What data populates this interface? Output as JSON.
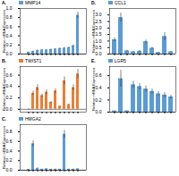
{
  "chart_data": [
    {
      "type": "bar",
      "annotation": "A.",
      "categories": [
        null,
        null,
        null,
        null,
        null,
        null,
        null,
        null,
        null,
        null,
        null,
        null
      ],
      "series": [
        {
          "name": "MMP14",
          "color": "#5b9bd5",
          "values": [
            0.04,
            0.06,
            0.08,
            0.09,
            0.09,
            0.1,
            0.11,
            0.12,
            0.13,
            0.14,
            0.18,
            0.85
          ],
          "errors": [
            0.005,
            0.008,
            0.01,
            0.01,
            0.01,
            0.01,
            0.01,
            0.015,
            0.015,
            0.015,
            0.02,
            0.07
          ]
        }
      ],
      "ylabel": "Relative mRNA Expression",
      "ylim": [
        0,
        1.0
      ],
      "yticks": [
        {
          "value": 0.0,
          "label": "0.0"
        },
        0.2,
        0.4,
        0.6,
        0.8,
        {
          "value": 1.0,
          "label": "1.0"
        }
      ],
      "legend": "upper left",
      "grid": false,
      "tick_labels": "y"
    },
    {
      "type": "bar",
      "annotation": "D.",
      "categories": [
        null,
        null,
        null,
        null,
        null,
        null,
        null,
        null,
        null,
        null
      ],
      "series": [
        {
          "name": "CCL1",
          "color": "#5b9bd5",
          "values": [
            1.1,
            2.8,
            0.25,
            0.18,
            0.22,
            0.95,
            0.45,
            0.12,
            1.35,
            0.18
          ],
          "errors": [
            0.14,
            0.35,
            0.04,
            0.03,
            0.04,
            0.13,
            0.07,
            0.02,
            0.3,
            0.03
          ]
        }
      ],
      "ylabel": "Relative mRNA Expression",
      "ylim": [
        0,
        3.5
      ],
      "yticks": [
        {
          "value": 0.0,
          "label": "0.0"
        },
        0.5,
        {
          "value": 1.0,
          "label": "1.0"
        },
        1.5,
        {
          "value": 2.0,
          "label": "2.0"
        },
        2.5,
        {
          "value": 3.0,
          "label": "3.0"
        }
      ],
      "legend": "upper left",
      "grid": false,
      "tick_labels": "y"
    },
    {
      "type": "bar",
      "annotation": "B.",
      "categories": [
        null,
        null,
        null,
        null,
        null,
        null,
        null,
        null,
        null,
        null,
        null,
        null
      ],
      "series": [
        {
          "name": "TWIST1",
          "color": "#ed7d31",
          "values": [
            0.0,
            0.28,
            0.38,
            0.24,
            0.3,
            0.12,
            0.32,
            0.05,
            0.5,
            0.08,
            0.38,
            0.62
          ],
          "errors": [
            0.01,
            0.04,
            0.05,
            0.03,
            0.04,
            0.02,
            0.04,
            0.01,
            0.07,
            0.01,
            0.05,
            0.08
          ]
        }
      ],
      "ylabel": "Relative mRNA Expression",
      "ylim": [
        -0.05,
        0.75
      ],
      "yticks": [
        {
          "value": 0.0,
          "label": "0.0"
        },
        0.2,
        0.4,
        0.6
      ],
      "legend": "upper left",
      "grid": false,
      "tick_labels": "y"
    },
    {
      "type": "bar",
      "annotation": "E.",
      "categories": [
        null,
        null,
        null,
        null,
        null,
        null,
        null,
        null,
        null,
        null
      ],
      "series": [
        {
          "name": "LGR5",
          "color": "#5b9bd5",
          "values": [
            0.02,
            0.55,
            0.02,
            0.45,
            0.42,
            0.38,
            0.34,
            0.3,
            0.28,
            0.25
          ],
          "errors": [
            0.003,
            0.14,
            0.003,
            0.06,
            0.05,
            0.05,
            0.04,
            0.04,
            0.04,
            0.03
          ]
        }
      ],
      "ylabel": "Relative mRNA Expression",
      "ylim": [
        0,
        0.75
      ],
      "yticks": [
        {
          "value": 0.0,
          "label": "0.0"
        },
        0.2,
        0.4,
        0.6
      ],
      "legend": "upper left",
      "grid": false,
      "tick_labels": "y"
    },
    {
      "type": "bar",
      "annotation": "C.",
      "categories": [
        null,
        null,
        null,
        null,
        null,
        null,
        null,
        null,
        null,
        null,
        null,
        null
      ],
      "series": [
        {
          "name": "HMGA2",
          "color": "#5b9bd5",
          "values": [
            0.015,
            0.55,
            0.04,
            0.02,
            0.03,
            0.02,
            0.02,
            0.02,
            0.75,
            0.02,
            0.02,
            0.03
          ],
          "errors": [
            0.003,
            0.06,
            0.006,
            0.004,
            0.005,
            0.004,
            0.004,
            0.004,
            0.08,
            0.004,
            0.004,
            0.005
          ]
        }
      ],
      "ylabel": "Relative mRNA Expression",
      "ylim": [
        0,
        0.95
      ],
      "yticks": [
        {
          "value": 0.0,
          "label": "0.0"
        },
        0.2,
        0.4,
        0.6,
        0.8
      ],
      "legend": "upper left",
      "grid": false,
      "tick_labels": "y"
    }
  ]
}
